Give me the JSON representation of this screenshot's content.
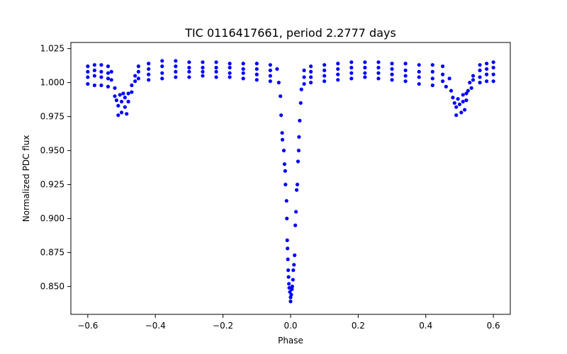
{
  "chart_data": {
    "type": "scatter",
    "title": "TIC 0116417661, period 2.2777 days",
    "xlabel": "Phase",
    "ylabel": "Normalized PDC flux",
    "xlim": [
      -0.65,
      0.65
    ],
    "ylim": [
      0.8295,
      1.0295
    ],
    "x_ticks": [
      -0.6,
      -0.4,
      -0.2,
      0.0,
      0.2,
      0.4,
      0.6
    ],
    "x_tick_labels": [
      "−0.6",
      "−0.4",
      "−0.2",
      "0.0",
      "0.2",
      "0.4",
      "0.6"
    ],
    "y_ticks": [
      0.85,
      0.875,
      0.9,
      0.925,
      0.95,
      0.975,
      1.0,
      1.025
    ],
    "y_tick_labels": [
      "0.850",
      "0.875",
      "0.900",
      "0.925",
      "0.950",
      "0.975",
      "1.000",
      "1.025"
    ],
    "grid": false,
    "marker_color": "#0000ff",
    "series": [
      {
        "name": "PDC flux",
        "points": [
          [
            -0.6,
            1.012
          ],
          [
            -0.6,
            1.008
          ],
          [
            -0.6,
            1.004
          ],
          [
            -0.6,
            0.999
          ],
          [
            -0.58,
            1.013
          ],
          [
            -0.58,
            1.009
          ],
          [
            -0.58,
            1.005
          ],
          [
            -0.58,
            0.998
          ],
          [
            -0.56,
            1.013
          ],
          [
            -0.56,
            1.008
          ],
          [
            -0.56,
            1.004
          ],
          [
            -0.56,
            0.998
          ],
          [
            -0.54,
            1.012
          ],
          [
            -0.54,
            1.007
          ],
          [
            -0.54,
            1.003
          ],
          [
            -0.54,
            0.997
          ],
          [
            -0.53,
            1.008
          ],
          [
            -0.53,
            1.002
          ],
          [
            -0.52,
            0.996
          ],
          [
            -0.52,
            0.99
          ],
          [
            -0.515,
            0.987
          ],
          [
            -0.51,
            0.983
          ],
          [
            -0.51,
            0.976
          ],
          [
            -0.505,
            0.991
          ],
          [
            -0.5,
            0.986
          ],
          [
            -0.5,
            0.978
          ],
          [
            -0.495,
            0.992
          ],
          [
            -0.49,
            0.989
          ],
          [
            -0.49,
            0.982
          ],
          [
            -0.485,
            0.977
          ],
          [
            -0.48,
            0.992
          ],
          [
            -0.48,
            0.986
          ],
          [
            -0.47,
            0.998
          ],
          [
            -0.47,
            0.993
          ],
          [
            -0.46,
            1.005
          ],
          [
            -0.46,
            1.001
          ],
          [
            -0.45,
            1.012
          ],
          [
            -0.45,
            1.008
          ],
          [
            -0.45,
            1.003
          ],
          [
            -0.42,
            1.014
          ],
          [
            -0.42,
            1.01
          ],
          [
            -0.42,
            1.006
          ],
          [
            -0.42,
            1.002
          ],
          [
            -0.38,
            1.016
          ],
          [
            -0.38,
            1.012
          ],
          [
            -0.38,
            1.007
          ],
          [
            -0.38,
            1.003
          ],
          [
            -0.34,
            1.016
          ],
          [
            -0.34,
            1.012
          ],
          [
            -0.34,
            1.008
          ],
          [
            -0.34,
            1.004
          ],
          [
            -0.3,
            1.015
          ],
          [
            -0.3,
            1.011
          ],
          [
            -0.3,
            1.008
          ],
          [
            -0.3,
            1.004
          ],
          [
            -0.26,
            1.015
          ],
          [
            -0.26,
            1.011
          ],
          [
            -0.26,
            1.008
          ],
          [
            -0.26,
            1.005
          ],
          [
            -0.22,
            1.015
          ],
          [
            -0.22,
            1.011
          ],
          [
            -0.22,
            1.008
          ],
          [
            -0.22,
            1.004
          ],
          [
            -0.18,
            1.014
          ],
          [
            -0.18,
            1.011
          ],
          [
            -0.18,
            1.007
          ],
          [
            -0.18,
            1.004
          ],
          [
            -0.14,
            1.014
          ],
          [
            -0.14,
            1.01
          ],
          [
            -0.14,
            1.007
          ],
          [
            -0.14,
            1.003
          ],
          [
            -0.1,
            1.014
          ],
          [
            -0.1,
            1.01
          ],
          [
            -0.1,
            1.006
          ],
          [
            -0.1,
            1.002
          ],
          [
            -0.06,
            1.013
          ],
          [
            -0.06,
            1.009
          ],
          [
            -0.06,
            1.005
          ],
          [
            -0.06,
            1.001
          ],
          [
            -0.04,
            1.01
          ],
          [
            -0.035,
            1.0
          ],
          [
            -0.03,
            0.99
          ],
          [
            -0.028,
            0.976
          ],
          [
            -0.025,
            0.963
          ],
          [
            -0.024,
            0.958
          ],
          [
            -0.02,
            0.95
          ],
          [
            -0.018,
            0.94
          ],
          [
            -0.016,
            0.935
          ],
          [
            -0.015,
            0.925
          ],
          [
            -0.012,
            0.913
          ],
          [
            -0.011,
            0.9
          ],
          [
            -0.01,
            0.884
          ],
          [
            -0.009,
            0.878
          ],
          [
            -0.008,
            0.87
          ],
          [
            -0.007,
            0.862
          ],
          [
            -0.006,
            0.857
          ],
          [
            -0.005,
            0.852
          ],
          [
            -0.004,
            0.849
          ],
          [
            -0.002,
            0.846
          ],
          [
            0.0,
            0.842
          ],
          [
            0.0,
            0.839
          ],
          [
            0.002,
            0.844
          ],
          [
            0.004,
            0.848
          ],
          [
            0.005,
            0.85
          ],
          [
            0.007,
            0.855
          ],
          [
            0.008,
            0.862
          ],
          [
            0.01,
            0.866
          ],
          [
            0.012,
            0.873
          ],
          [
            0.014,
            0.895
          ],
          [
            0.016,
            0.905
          ],
          [
            0.018,
            0.921
          ],
          [
            0.02,
            0.925
          ],
          [
            0.022,
            0.942
          ],
          [
            0.024,
            0.95
          ],
          [
            0.025,
            0.96
          ],
          [
            0.027,
            0.972
          ],
          [
            0.03,
            0.985
          ],
          [
            0.032,
            0.995
          ],
          [
            0.04,
            1.009
          ],
          [
            0.04,
            1.004
          ],
          [
            0.04,
            0.999
          ],
          [
            0.06,
            1.012
          ],
          [
            0.06,
            1.008
          ],
          [
            0.06,
            1.004
          ],
          [
            0.06,
            1.0
          ],
          [
            0.1,
            1.013
          ],
          [
            0.1,
            1.009
          ],
          [
            0.1,
            1.005
          ],
          [
            0.1,
            1.001
          ],
          [
            0.14,
            1.014
          ],
          [
            0.14,
            1.01
          ],
          [
            0.14,
            1.006
          ],
          [
            0.14,
            1.002
          ],
          [
            0.18,
            1.015
          ],
          [
            0.18,
            1.011
          ],
          [
            0.18,
            1.007
          ],
          [
            0.18,
            1.003
          ],
          [
            0.22,
            1.015
          ],
          [
            0.22,
            1.011
          ],
          [
            0.22,
            1.007
          ],
          [
            0.22,
            1.004
          ],
          [
            0.26,
            1.015
          ],
          [
            0.26,
            1.011
          ],
          [
            0.26,
            1.007
          ],
          [
            0.26,
            1.003
          ],
          [
            0.3,
            1.014
          ],
          [
            0.3,
            1.01
          ],
          [
            0.3,
            1.006
          ],
          [
            0.3,
            1.002
          ],
          [
            0.34,
            1.014
          ],
          [
            0.34,
            1.009
          ],
          [
            0.34,
            1.005
          ],
          [
            0.34,
            1.001
          ],
          [
            0.38,
            1.013
          ],
          [
            0.38,
            1.008
          ],
          [
            0.38,
            1.004
          ],
          [
            0.38,
            0.999
          ],
          [
            0.42,
            1.013
          ],
          [
            0.42,
            1.008
          ],
          [
            0.42,
            1.003
          ],
          [
            0.42,
            0.998
          ],
          [
            0.45,
            1.012
          ],
          [
            0.45,
            1.006
          ],
          [
            0.45,
            1.001
          ],
          [
            0.46,
            0.997
          ],
          [
            0.47,
            1.003
          ],
          [
            0.475,
            0.994
          ],
          [
            0.48,
            0.989
          ],
          [
            0.485,
            0.985
          ],
          [
            0.49,
            0.982
          ],
          [
            0.49,
            0.976
          ],
          [
            0.495,
            0.988
          ],
          [
            0.5,
            0.984
          ],
          [
            0.505,
            0.978
          ],
          [
            0.51,
            0.991
          ],
          [
            0.51,
            0.986
          ],
          [
            0.515,
            0.98
          ],
          [
            0.52,
            0.992
          ],
          [
            0.52,
            0.987
          ],
          [
            0.525,
            0.994
          ],
          [
            0.53,
            1.0
          ],
          [
            0.535,
            0.996
          ],
          [
            0.54,
            1.005
          ],
          [
            0.54,
            1.002
          ],
          [
            0.56,
            1.013
          ],
          [
            0.56,
            1.009
          ],
          [
            0.56,
            1.004
          ],
          [
            0.56,
            1.0
          ],
          [
            0.58,
            1.014
          ],
          [
            0.58,
            1.01
          ],
          [
            0.58,
            1.006
          ],
          [
            0.58,
            1.001
          ],
          [
            0.6,
            1.015
          ],
          [
            0.6,
            1.011
          ],
          [
            0.6,
            1.006
          ],
          [
            0.6,
            1.001
          ]
        ]
      }
    ]
  }
}
